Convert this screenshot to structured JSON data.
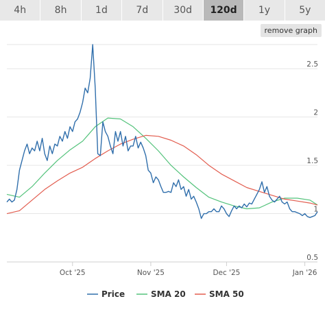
{
  "tabs": [
    {
      "label": "4h",
      "active": false
    },
    {
      "label": "8h",
      "active": false
    },
    {
      "label": "1d",
      "active": false
    },
    {
      "label": "7d",
      "active": false
    },
    {
      "label": "30d",
      "active": false
    },
    {
      "label": "120d",
      "active": true
    },
    {
      "label": "1y",
      "active": false
    },
    {
      "label": "5y",
      "active": false
    }
  ],
  "remove_graph_label": "remove graph",
  "chart_data": {
    "type": "line",
    "title": "",
    "xlabel": "",
    "ylabel": "",
    "x_start": "2025-09-05",
    "x_end": "2026-01-06",
    "x_ticks": [
      {
        "label": "Oct '25",
        "date": "2025-10-01"
      },
      {
        "label": "Nov '25",
        "date": "2025-11-01"
      },
      {
        "label": "Dec '25",
        "date": "2025-12-01"
      },
      {
        "label": "Jan '26",
        "date": "2026-01-01"
      }
    ],
    "y_ticks": [
      0.5,
      1,
      1.5,
      2,
      2.5
    ],
    "ylim": [
      0.5,
      2.75
    ],
    "grid": true,
    "legend_position": "bottom",
    "series": [
      {
        "name": "Price",
        "color": "#2f6eab",
        "points": [
          [
            "2025-09-05",
            1.12
          ],
          [
            "2025-09-06",
            1.15
          ],
          [
            "2025-09-07",
            1.12
          ],
          [
            "2025-09-08",
            1.14
          ],
          [
            "2025-09-09",
            1.25
          ],
          [
            "2025-09-10",
            1.45
          ],
          [
            "2025-09-11",
            1.55
          ],
          [
            "2025-09-12",
            1.65
          ],
          [
            "2025-09-13",
            1.72
          ],
          [
            "2025-09-14",
            1.62
          ],
          [
            "2025-09-15",
            1.68
          ],
          [
            "2025-09-16",
            1.65
          ],
          [
            "2025-09-17",
            1.75
          ],
          [
            "2025-09-18",
            1.65
          ],
          [
            "2025-09-19",
            1.78
          ],
          [
            "2025-09-20",
            1.62
          ],
          [
            "2025-09-21",
            1.55
          ],
          [
            "2025-09-22",
            1.7
          ],
          [
            "2025-09-23",
            1.62
          ],
          [
            "2025-09-24",
            1.72
          ],
          [
            "2025-09-25",
            1.7
          ],
          [
            "2025-09-26",
            1.8
          ],
          [
            "2025-09-27",
            1.75
          ],
          [
            "2025-09-28",
            1.85
          ],
          [
            "2025-09-29",
            1.78
          ],
          [
            "2025-09-30",
            1.9
          ],
          [
            "2025-10-01",
            1.85
          ],
          [
            "2025-10-02",
            1.95
          ],
          [
            "2025-10-03",
            1.98
          ],
          [
            "2025-10-04",
            2.05
          ],
          [
            "2025-10-05",
            2.15
          ],
          [
            "2025-10-06",
            2.3
          ],
          [
            "2025-10-07",
            2.25
          ],
          [
            "2025-10-08",
            2.4
          ],
          [
            "2025-10-09",
            2.75
          ],
          [
            "2025-10-10",
            2.3
          ],
          [
            "2025-10-11",
            1.62
          ],
          [
            "2025-10-12",
            1.6
          ],
          [
            "2025-10-13",
            1.95
          ],
          [
            "2025-10-14",
            1.85
          ],
          [
            "2025-10-15",
            1.8
          ],
          [
            "2025-10-16",
            1.7
          ],
          [
            "2025-10-17",
            1.62
          ],
          [
            "2025-10-18",
            1.85
          ],
          [
            "2025-10-19",
            1.75
          ],
          [
            "2025-10-20",
            1.85
          ],
          [
            "2025-10-21",
            1.7
          ],
          [
            "2025-10-22",
            1.8
          ],
          [
            "2025-10-23",
            1.65
          ],
          [
            "2025-10-24",
            1.7
          ],
          [
            "2025-10-25",
            1.7
          ],
          [
            "2025-10-26",
            1.8
          ],
          [
            "2025-10-27",
            1.68
          ],
          [
            "2025-10-28",
            1.74
          ],
          [
            "2025-10-29",
            1.68
          ],
          [
            "2025-10-30",
            1.6
          ],
          [
            "2025-10-31",
            1.45
          ],
          [
            "2025-11-01",
            1.42
          ],
          [
            "2025-11-02",
            1.32
          ],
          [
            "2025-11-03",
            1.38
          ],
          [
            "2025-11-04",
            1.35
          ],
          [
            "2025-11-05",
            1.28
          ],
          [
            "2025-11-06",
            1.22
          ],
          [
            "2025-11-07",
            1.22
          ],
          [
            "2025-11-08",
            1.23
          ],
          [
            "2025-11-09",
            1.22
          ],
          [
            "2025-11-10",
            1.32
          ],
          [
            "2025-11-11",
            1.28
          ],
          [
            "2025-11-12",
            1.35
          ],
          [
            "2025-11-13",
            1.25
          ],
          [
            "2025-11-14",
            1.28
          ],
          [
            "2025-11-15",
            1.18
          ],
          [
            "2025-11-16",
            1.25
          ],
          [
            "2025-11-17",
            1.15
          ],
          [
            "2025-11-18",
            1.18
          ],
          [
            "2025-11-19",
            1.12
          ],
          [
            "2025-11-20",
            1.05
          ],
          [
            "2025-11-21",
            0.95
          ],
          [
            "2025-11-22",
            1.0
          ],
          [
            "2025-11-23",
            1.0
          ],
          [
            "2025-11-24",
            1.02
          ],
          [
            "2025-11-25",
            1.02
          ],
          [
            "2025-11-26",
            1.05
          ],
          [
            "2025-11-27",
            1.02
          ],
          [
            "2025-11-28",
            1.02
          ],
          [
            "2025-11-29",
            1.08
          ],
          [
            "2025-11-30",
            1.05
          ],
          [
            "2025-12-01",
            1.0
          ],
          [
            "2025-12-02",
            0.97
          ],
          [
            "2025-12-03",
            1.03
          ],
          [
            "2025-12-04",
            1.08
          ],
          [
            "2025-12-05",
            1.05
          ],
          [
            "2025-12-06",
            1.08
          ],
          [
            "2025-12-07",
            1.06
          ],
          [
            "2025-12-08",
            1.1
          ],
          [
            "2025-12-09",
            1.07
          ],
          [
            "2025-12-10",
            1.11
          ],
          [
            "2025-12-11",
            1.1
          ],
          [
            "2025-12-12",
            1.15
          ],
          [
            "2025-12-13",
            1.2
          ],
          [
            "2025-12-14",
            1.25
          ],
          [
            "2025-12-15",
            1.33
          ],
          [
            "2025-12-16",
            1.22
          ],
          [
            "2025-12-17",
            1.28
          ],
          [
            "2025-12-18",
            1.18
          ],
          [
            "2025-12-19",
            1.14
          ],
          [
            "2025-12-20",
            1.12
          ],
          [
            "2025-12-21",
            1.15
          ],
          [
            "2025-12-22",
            1.18
          ],
          [
            "2025-12-23",
            1.12
          ],
          [
            "2025-12-24",
            1.1
          ],
          [
            "2025-12-25",
            1.12
          ],
          [
            "2025-12-26",
            1.05
          ],
          [
            "2025-12-27",
            1.02
          ],
          [
            "2025-12-28",
            1.02
          ],
          [
            "2025-12-29",
            1.01
          ],
          [
            "2025-12-30",
            1.0
          ],
          [
            "2025-12-31",
            0.98
          ],
          [
            "2026-01-01",
            1.0
          ],
          [
            "2026-01-02",
            0.97
          ],
          [
            "2026-01-03",
            0.96
          ],
          [
            "2026-01-04",
            0.97
          ],
          [
            "2026-01-05",
            0.98
          ],
          [
            "2026-01-06",
            1.02
          ]
        ]
      },
      {
        "name": "SMA 20",
        "color": "#52c27a",
        "points": [
          [
            "2025-09-05",
            1.2
          ],
          [
            "2025-09-10",
            1.17
          ],
          [
            "2025-09-15",
            1.28
          ],
          [
            "2025-09-20",
            1.42
          ],
          [
            "2025-09-25",
            1.55
          ],
          [
            "2025-09-30",
            1.66
          ],
          [
            "2025-10-05",
            1.75
          ],
          [
            "2025-10-10",
            1.9
          ],
          [
            "2025-10-15",
            1.99
          ],
          [
            "2025-10-20",
            1.98
          ],
          [
            "2025-10-25",
            1.9
          ],
          [
            "2025-10-30",
            1.78
          ],
          [
            "2025-11-04",
            1.65
          ],
          [
            "2025-11-09",
            1.5
          ],
          [
            "2025-11-14",
            1.38
          ],
          [
            "2025-11-19",
            1.27
          ],
          [
            "2025-11-24",
            1.17
          ],
          [
            "2025-11-29",
            1.12
          ],
          [
            "2025-12-04",
            1.08
          ],
          [
            "2025-12-09",
            1.05
          ],
          [
            "2025-12-14",
            1.06
          ],
          [
            "2025-12-19",
            1.12
          ],
          [
            "2025-12-24",
            1.16
          ],
          [
            "2025-12-29",
            1.16
          ],
          [
            "2026-01-03",
            1.14
          ],
          [
            "2026-01-06",
            1.09
          ]
        ]
      },
      {
        "name": "SMA 50",
        "color": "#e25c4e",
        "points": [
          [
            "2025-09-05",
            1.0
          ],
          [
            "2025-09-10",
            1.03
          ],
          [
            "2025-09-15",
            1.14
          ],
          [
            "2025-09-20",
            1.25
          ],
          [
            "2025-09-25",
            1.34
          ],
          [
            "2025-09-30",
            1.42
          ],
          [
            "2025-10-05",
            1.48
          ],
          [
            "2025-10-10",
            1.57
          ],
          [
            "2025-10-15",
            1.65
          ],
          [
            "2025-10-20",
            1.72
          ],
          [
            "2025-10-25",
            1.77
          ],
          [
            "2025-10-30",
            1.81
          ],
          [
            "2025-11-04",
            1.8
          ],
          [
            "2025-11-09",
            1.76
          ],
          [
            "2025-11-14",
            1.7
          ],
          [
            "2025-11-19",
            1.61
          ],
          [
            "2025-11-24",
            1.5
          ],
          [
            "2025-11-29",
            1.41
          ],
          [
            "2025-12-04",
            1.34
          ],
          [
            "2025-12-09",
            1.27
          ],
          [
            "2025-12-14",
            1.23
          ],
          [
            "2025-12-19",
            1.19
          ],
          [
            "2025-12-24",
            1.15
          ],
          [
            "2025-12-29",
            1.13
          ],
          [
            "2026-01-03",
            1.11
          ],
          [
            "2026-01-06",
            1.09
          ]
        ]
      }
    ]
  }
}
